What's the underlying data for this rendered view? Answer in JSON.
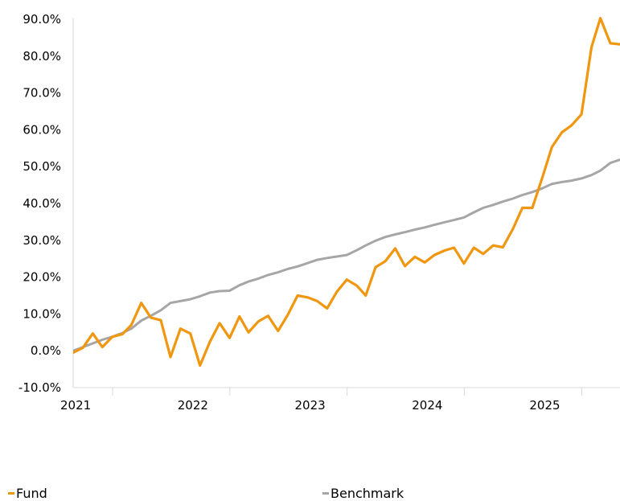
{
  "chart_data": {
    "type": "line",
    "title": "",
    "xlabel": "",
    "ylabel": "",
    "ylim": [
      -10,
      90
    ],
    "yticks": [
      "90.0%",
      "80.0%",
      "70.0%",
      "60.0%",
      "50.0%",
      "40.0%",
      "30.0%",
      "20.0%",
      "10.0%",
      "0.0%",
      "-10.0%"
    ],
    "ytick_values": [
      90,
      80,
      70,
      60,
      50,
      40,
      30,
      20,
      10,
      0,
      -10
    ],
    "xticks": [
      "2021",
      "2022",
      "2023",
      "2024",
      "2025"
    ],
    "xtick_values": [
      "2021-01-01",
      "2022-01-01",
      "2023-01-01",
      "2024-01-01",
      "2025-01-01"
    ],
    "x_start": "2020-08-31",
    "x_end": "2025-04-30",
    "x": [
      "2020-08-31",
      "2020-09-30",
      "2020-10-31",
      "2020-11-30",
      "2020-12-31",
      "2021-01-31",
      "2021-02-28",
      "2021-03-31",
      "2021-04-30",
      "2021-05-31",
      "2021-06-30",
      "2021-07-31",
      "2021-08-31",
      "2021-09-30",
      "2021-10-31",
      "2021-11-30",
      "2021-12-31",
      "2022-01-31",
      "2022-02-28",
      "2022-03-31",
      "2022-04-30",
      "2022-05-31",
      "2022-06-30",
      "2022-07-31",
      "2022-08-31",
      "2022-09-30",
      "2022-10-31",
      "2022-11-30",
      "2022-12-31",
      "2023-01-31",
      "2023-02-28",
      "2023-03-31",
      "2023-04-30",
      "2023-05-31",
      "2023-06-30",
      "2023-07-31",
      "2023-08-31",
      "2023-09-30",
      "2023-10-31",
      "2023-11-30",
      "2023-12-31",
      "2024-01-31",
      "2024-02-29",
      "2024-03-31",
      "2024-04-30",
      "2024-05-31",
      "2024-06-30",
      "2024-07-31",
      "2024-08-31",
      "2024-09-30",
      "2024-10-31",
      "2024-11-30",
      "2024-12-31",
      "2025-01-31",
      "2025-02-28",
      "2025-03-31",
      "2025-04-30"
    ],
    "series": [
      {
        "name": "Fund",
        "color": "#f0960f",
        "values": [
          -0.5,
          0.8,
          4.7,
          1.0,
          3.8,
          4.5,
          7.0,
          13.0,
          9.0,
          8.3,
          -1.7,
          6.0,
          4.7,
          -4.0,
          2.5,
          7.5,
          3.5,
          9.3,
          5.0,
          8.0,
          9.5,
          5.4,
          9.7,
          15.0,
          14.5,
          13.5,
          11.5,
          16.0,
          19.3,
          17.7,
          15.0,
          22.7,
          24.3,
          27.8,
          23.0,
          25.5,
          24.0,
          26.0,
          27.2,
          28.0,
          23.7,
          28.0,
          26.3,
          28.6,
          28.1,
          33.0,
          38.8,
          38.8,
          47.0,
          55.3,
          59.3,
          61.2,
          64.2,
          82.4,
          90.3,
          83.5,
          83.2
        ]
      },
      {
        "name": "Benchmark",
        "color": "#a6a6a6",
        "values": [
          0.0,
          1.0,
          2.0,
          3.0,
          3.8,
          4.8,
          6.0,
          8.2,
          9.5,
          11.0,
          13.0,
          13.5,
          14.0,
          14.8,
          15.8,
          16.2,
          16.3,
          17.8,
          18.8,
          19.6,
          20.6,
          21.3,
          22.2,
          22.9,
          23.8,
          24.7,
          25.2,
          25.6,
          26.0,
          27.3,
          28.6,
          29.9,
          30.9,
          31.6,
          32.2,
          32.9,
          33.5,
          34.2,
          34.9,
          35.5,
          36.2,
          37.6,
          38.8,
          39.6,
          40.5,
          41.3,
          42.3,
          43.1,
          44.1,
          45.3,
          45.8,
          46.2,
          46.8,
          47.7,
          48.9,
          51.0,
          51.9
        ]
      }
    ],
    "grid": false,
    "legend_position": "bottom",
    "legend": [
      "Fund",
      "Benchmark"
    ]
  }
}
